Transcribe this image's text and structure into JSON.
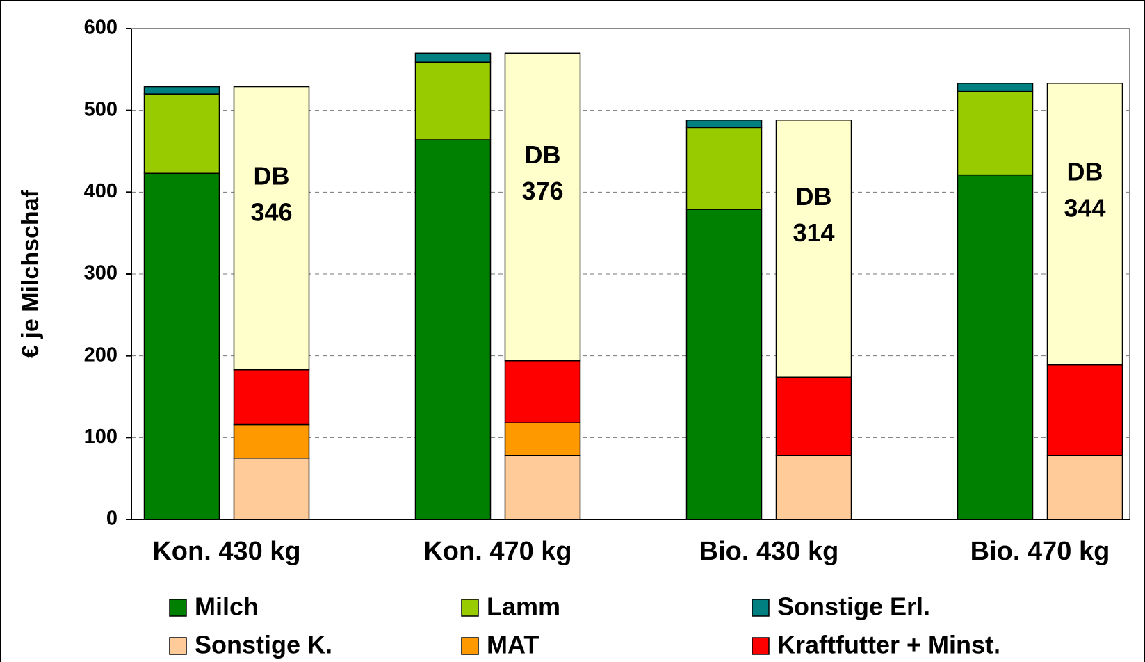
{
  "chart_data": {
    "type": "stacked_bar",
    "y_label": "€ je Milchschaf",
    "categories": [
      "Kon. 430 kg",
      "Kon. 470 kg",
      "Bio. 430 kg",
      "Bio. 470  kg"
    ],
    "series": [
      {
        "name": "Milch",
        "color": "#008000",
        "stack": "revenue",
        "values": [
          423,
          464,
          379,
          421
        ]
      },
      {
        "name": "Lamm",
        "color": "#99cc00",
        "stack": "revenue",
        "values": [
          97,
          95,
          100,
          102
        ]
      },
      {
        "name": "Sonstige Erl.",
        "color": "#008080",
        "stack": "revenue",
        "values": [
          9,
          11,
          9,
          10
        ]
      },
      {
        "name": "Sonstige K.",
        "color": "#ffcc99",
        "stack": "cost",
        "values": [
          75,
          78,
          78,
          78
        ]
      },
      {
        "name": "MAT",
        "color": "#ff9900",
        "stack": "cost",
        "values": [
          41,
          40,
          0,
          0
        ]
      },
      {
        "name": "Kraftfutter + Minst.",
        "color": "#ff0000",
        "stack": "cost",
        "values": [
          67,
          76,
          96,
          111
        ]
      },
      {
        "name": "DB",
        "color": "#ffffcc",
        "stack": "cost",
        "legend": false,
        "data_labels": true,
        "values": [
          346,
          376,
          314,
          344
        ]
      }
    ],
    "ylim": [
      0,
      600
    ],
    "yticks": [
      0,
      100,
      200,
      300,
      400,
      500,
      600
    ],
    "grid": true
  }
}
